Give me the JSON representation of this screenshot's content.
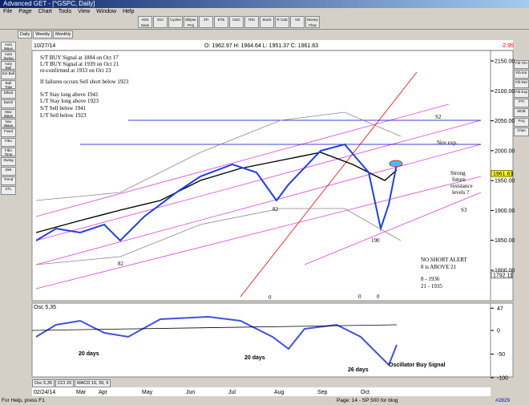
{
  "window": {
    "title": "Advanced GET - [^GSPC, Daily]"
  },
  "menu": [
    "File",
    "Page",
    "Chart",
    "Tools",
    "View",
    "Window",
    "Help"
  ],
  "toolbar": [
    "ADX Seas",
    "OCI",
    "Cycles",
    "Ellipse Proj",
    "JTI",
    "ETE",
    "OSC",
    "RSI",
    "Stock",
    "Tr Calc",
    "Vol",
    "Money Flow"
  ],
  "left_tools": [
    "Auto Wave",
    "Auto Swing",
    "Auto Bull",
    "Ext Bull",
    "Bull Trap",
    "Elliott",
    "Dutch",
    "Mav Wave",
    "Nov Wave",
    "Fixed",
    "Fibo",
    "Fibo Time",
    "Swing",
    "Dist",
    "Trend",
    "XTL"
  ],
  "right_tools": [
    "Fib Tim",
    "Fib Ext",
    "Fib Ret",
    "Fib Exp",
    "PTI",
    "MOB",
    "Proj",
    "Chan"
  ],
  "tabs": [
    "Daily",
    "Weekly",
    "Monthly"
  ],
  "header": {
    "date": "10/27/14",
    "ohlc": "O: 1962.97  H: 1964.64  L: 1951.37  C: 1961.63",
    "change": "-2.95"
  },
  "price_axis": {
    "ticks": [
      {
        "value": 2150,
        "label": "2150.00"
      },
      {
        "value": 2100,
        "label": "2100.00"
      },
      {
        "value": 2050,
        "label": "2050.00"
      },
      {
        "value": 2000,
        "label": "2000.00"
      },
      {
        "value": 1950,
        "label": "1950.00"
      },
      {
        "value": 1900,
        "label": "1900.00"
      },
      {
        "value": 1850,
        "label": "1850.00"
      },
      {
        "value": 1800,
        "label": "1800.00"
      }
    ],
    "last": {
      "value": 1961.63,
      "label": "1961.63"
    },
    "marker": {
      "value": 1792.11,
      "label": "1792.11"
    }
  },
  "annotations": [
    "S/T BUY Signal at 1884 on Oct 17",
    "L/T BUY Signal at 1939 on Oct 21",
    "re-confirmed at 1933 on Oct 23",
    "If failures occurs Sell short below 1923",
    "S/T Stay long above 1941",
    "L/T Stay long above 1923",
    "S/T Sell below 1941",
    "L/T Sell below 1923",
    "S2",
    "Nov exp.",
    "Strong",
    "future",
    "resistance",
    "levels ?",
    "S3",
    "NO SHORT ALERT",
    "8 is ABOVE 21",
    "8   - 1936",
    "21  - 1935",
    "82",
    "82",
    "190",
    "0",
    "0",
    "0"
  ],
  "osc": {
    "label": "Osc 5,35",
    "ticks": [
      47,
      0,
      -50,
      -100
    ],
    "notes": [
      "20 days",
      "20 days",
      "26 days",
      "Oscillator Buy Signal"
    ]
  },
  "bottom_tabs": [
    "Osc 5,35",
    "CCI 20",
    "MACD 19, 39, 9"
  ],
  "date_axis": [
    "02/24/14",
    "Mar",
    "Apr",
    "May",
    "Jun",
    "Jul",
    "Aug",
    "Sep",
    "Oct"
  ],
  "status": {
    "help": "For Help, press F1",
    "page": "Page: 14 - SP 500 for blog",
    "id": "#2829"
  }
}
